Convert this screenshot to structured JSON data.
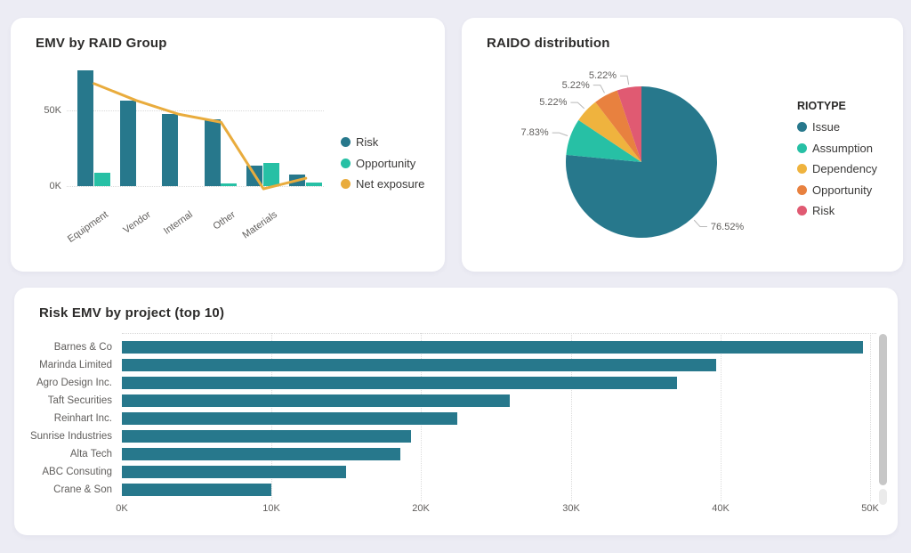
{
  "page": {
    "background_color": "#ECECF4",
    "card_color": "#FFFFFF"
  },
  "chart_data": [
    {
      "id": "emv-by-raid-group",
      "type": "bar",
      "subtype": "clustered_columns_with_line",
      "title": "EMV by RAID Group",
      "categories": [
        "Equipment",
        "Vendor",
        "Internal",
        "Other",
        "Materials",
        ""
      ],
      "series": [
        {
          "name": "Risk",
          "type": "column",
          "color": "#27788C",
          "values_k": [
            76.5,
            56.5,
            47.5,
            44.0,
            13.5,
            7.6
          ]
        },
        {
          "name": "Opportunity",
          "type": "column",
          "color": "#27C0A5",
          "values_k": [
            8.8,
            0,
            0,
            1.8,
            15.3,
            2.4
          ]
        },
        {
          "name": "Net exposure",
          "type": "line",
          "color": "#E9AC3D",
          "values_k": [
            67.7,
            56.5,
            47.5,
            42.2,
            -1.8,
            5.2
          ]
        }
      ],
      "value_unit": "K",
      "y_axis": {
        "ticks": [
          {
            "label": "0K",
            "value_k": 0
          },
          {
            "label": "50K",
            "value_k": 50
          }
        ],
        "max_k": 80
      },
      "legend_position": "right",
      "grid": "dotted horizontal"
    },
    {
      "id": "raido-distribution",
      "type": "pie",
      "title": "RAIDO distribution",
      "legend_title": "RIOTYPE",
      "legend_position": "right",
      "start_angle_deg": 0,
      "direction": "clockwise",
      "slices": [
        {
          "label": "Issue",
          "percent": 76.52,
          "percent_label": "76.52%",
          "color": "#27788C"
        },
        {
          "label": "Assumption",
          "percent": 7.83,
          "percent_label": "7.83%",
          "color": "#27C0A5"
        },
        {
          "label": "Dependency",
          "percent": 5.22,
          "percent_label": "5.22%",
          "color": "#EFB33E"
        },
        {
          "label": "Opportunity",
          "percent": 5.22,
          "percent_label": "5.22%",
          "color": "#E8813F"
        },
        {
          "label": "Risk",
          "percent": 5.22,
          "percent_label": "5.22%",
          "color": "#E05A72"
        }
      ],
      "leader_line_color": "#B9B9B9"
    },
    {
      "id": "risk-emv-by-project",
      "type": "bar",
      "subtype": "horizontal_bars",
      "title": "Risk EMV by project (top 10)",
      "bar_color": "#27788C",
      "categories": [
        "Barnes & Co",
        "Marinda Limited",
        "Agro Design Inc.",
        "Taft Securities",
        "Reinhart Inc.",
        "Sunrise Industries",
        "Alta Tech",
        "ABC Consuting",
        "Crane & Son"
      ],
      "values_k": [
        49.5,
        39.7,
        37.1,
        25.9,
        22.4,
        19.3,
        18.6,
        15.0,
        10.0
      ],
      "value_unit": "K",
      "x_axis": {
        "ticks": [
          {
            "label": "0K",
            "value_k": 0
          },
          {
            "label": "10K",
            "value_k": 10
          },
          {
            "label": "20K",
            "value_k": 20
          },
          {
            "label": "30K",
            "value_k": 30
          },
          {
            "label": "40K",
            "value_k": 40
          },
          {
            "label": "50K",
            "value_k": 50
          }
        ],
        "max_k": 50
      },
      "scrollbar_visible": true,
      "grid": "dotted vertical"
    }
  ]
}
